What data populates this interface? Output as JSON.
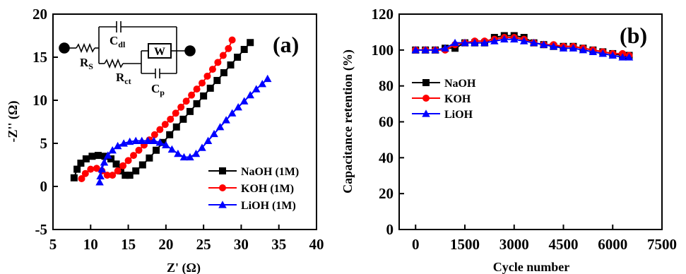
{
  "chart_data": [
    {
      "panel_label": "(a)",
      "type": "scatter",
      "xlabel": "Z' (Ω)",
      "ylabel": "-Z'' (Ω)",
      "xlim": [
        5,
        40
      ],
      "ylim": [
        -5,
        20
      ],
      "xticks": [
        "5",
        "10",
        "15",
        "20",
        "25",
        "30",
        "35",
        "40"
      ],
      "yticks": [
        "-5",
        "0",
        "5",
        "10",
        "15",
        "20"
      ],
      "legend_position": "bottom-right",
      "circuit_labels": {
        "rs": "R",
        "rs_sub": "S",
        "cdl": "C",
        "cdl_sub": "dl",
        "rct": "R",
        "rct_sub": "ct",
        "cp": "C",
        "cp_sub": "p",
        "w": "W"
      },
      "series": [
        {
          "name": "NaOH (1M)",
          "color": "#000000",
          "marker": "square",
          "x": [
            7.8,
            8.2,
            8.7,
            9.4,
            10.2,
            11.0,
            11.9,
            12.7,
            13.4,
            14.0,
            14.6,
            15.2,
            16.0,
            16.9,
            17.8,
            18.7,
            19.6,
            20.5,
            21.4,
            22.3,
            23.2,
            24.1,
            25.0,
            25.9,
            26.8,
            27.7,
            28.6,
            29.5,
            30.4,
            31.2
          ],
          "y": [
            1.0,
            2.0,
            2.7,
            3.2,
            3.5,
            3.6,
            3.5,
            3.2,
            2.6,
            1.8,
            1.3,
            1.3,
            1.8,
            2.5,
            3.3,
            4.2,
            5.1,
            6.0,
            6.9,
            7.8,
            8.7,
            9.6,
            10.5,
            11.4,
            12.3,
            13.2,
            14.1,
            15.0,
            15.9,
            16.7
          ]
        },
        {
          "name": "KOH (1M)",
          "color": "#ff0000",
          "marker": "circle",
          "x": [
            8.8,
            9.3,
            10.0,
            10.8,
            11.5,
            12.2,
            12.9,
            13.6,
            14.3,
            15.0,
            15.7,
            16.4,
            17.1,
            17.8,
            18.5,
            19.2,
            19.9,
            20.6,
            21.3,
            22.0,
            22.7,
            23.4,
            24.1,
            24.8,
            25.5,
            26.2,
            26.9,
            27.6,
            28.3,
            28.8
          ],
          "y": [
            0.9,
            1.5,
            2.0,
            2.1,
            1.8,
            1.3,
            1.3,
            1.8,
            2.4,
            3.0,
            3.6,
            4.2,
            4.8,
            5.4,
            6.0,
            6.6,
            7.2,
            7.8,
            8.5,
            9.2,
            9.9,
            10.6,
            11.3,
            12.0,
            12.8,
            13.6,
            14.4,
            15.2,
            16.0,
            17.0
          ]
        },
        {
          "name": "LiOH (1M)",
          "color": "#0000ff",
          "marker": "triangle",
          "x": [
            11.2,
            11.3,
            11.5,
            11.8,
            12.3,
            12.9,
            13.6,
            14.4,
            15.2,
            16.0,
            16.8,
            17.6,
            18.4,
            19.2,
            20.0,
            20.8,
            21.6,
            22.4,
            23.2,
            24.0,
            24.8,
            25.6,
            26.4,
            27.2,
            28.0,
            28.8,
            29.6,
            30.4,
            31.2,
            32.0,
            32.8,
            33.5
          ],
          "y": [
            0.5,
            1.2,
            2.0,
            2.8,
            3.6,
            4.2,
            4.7,
            5.0,
            5.2,
            5.3,
            5.3,
            5.3,
            5.3,
            5.1,
            4.8,
            4.3,
            3.8,
            3.4,
            3.4,
            3.8,
            4.5,
            5.3,
            6.1,
            6.9,
            7.7,
            8.5,
            9.2,
            9.9,
            10.6,
            11.3,
            11.9,
            12.5
          ]
        }
      ]
    },
    {
      "panel_label": "(b)",
      "type": "line",
      "xlabel": "Cycle number",
      "ylabel": "Capacitance retention (%)",
      "xlim": [
        -500,
        7500
      ],
      "ylim": [
        0,
        120
      ],
      "xticks": [
        "0",
        "1500",
        "3000",
        "4500",
        "6000",
        "7500"
      ],
      "yticks": [
        "0",
        "20",
        "40",
        "60",
        "80",
        "100",
        "120"
      ],
      "legend_position": "middle-left",
      "series": [
        {
          "name": "NaOH",
          "color": "#000000",
          "marker": "square",
          "x": [
            0,
            300,
            600,
            900,
            1200,
            1500,
            1800,
            2100,
            2400,
            2700,
            3000,
            3300,
            3600,
            3900,
            4200,
            4500,
            4800,
            5100,
            5400,
            5700,
            6000,
            6300,
            6500
          ],
          "y": [
            100,
            100,
            100,
            101,
            101,
            104,
            104,
            104,
            107,
            108,
            108,
            107,
            104,
            103,
            102,
            102,
            102,
            101,
            100,
            99,
            98,
            97,
            97
          ]
        },
        {
          "name": "KOH",
          "color": "#ff0000",
          "marker": "circle",
          "x": [
            0,
            300,
            600,
            900,
            1200,
            1500,
            1800,
            2100,
            2400,
            2700,
            3000,
            3300,
            3600,
            3900,
            4200,
            4500,
            4800,
            5100,
            5400,
            5700,
            6000,
            6300,
            6500
          ],
          "y": [
            100,
            100,
            100,
            100,
            103,
            104,
            105,
            105,
            106,
            107,
            107,
            106,
            104,
            103,
            103,
            102,
            102,
            101,
            100,
            99,
            98,
            98,
            97
          ]
        },
        {
          "name": "LiOH",
          "color": "#0000ff",
          "marker": "triangle",
          "x": [
            0,
            300,
            600,
            900,
            1200,
            1500,
            1800,
            2100,
            2400,
            2700,
            3000,
            3300,
            3600,
            3900,
            4200,
            4500,
            4800,
            5100,
            5400,
            5700,
            6000,
            6300,
            6500
          ],
          "y": [
            100,
            100,
            100,
            101,
            104,
            104,
            104,
            104,
            105,
            106,
            106,
            105,
            104,
            103,
            102,
            101,
            101,
            100,
            99,
            98,
            97,
            96,
            96
          ]
        }
      ]
    }
  ]
}
